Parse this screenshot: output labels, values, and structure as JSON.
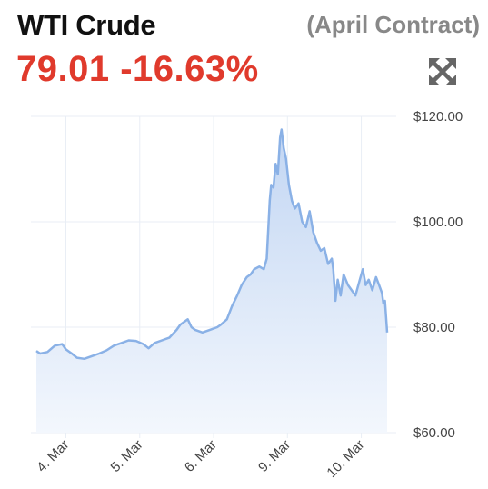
{
  "header": {
    "title": "WTI Crude",
    "subtitle": "(April Contract)",
    "price": "79.01",
    "change": "-16.63%",
    "expand_icon": "expand-arrows-icon"
  },
  "colors": {
    "title": "#111111",
    "subtitle": "#888888",
    "price": "#e03a2c",
    "line": "#8ab1e6",
    "fill_top": "#c2d6f3",
    "fill_bottom": "#f3f7fd",
    "grid": "#e9eef5",
    "icon": "#666666"
  },
  "chart_data": {
    "type": "area",
    "title": "WTI Crude",
    "subtitle": "(April Contract)",
    "xlabel": "",
    "ylabel": "",
    "ylim": [
      60,
      120
    ],
    "y_ticks": [
      "$60.00",
      "$80.00",
      "$100.00",
      "$120.00"
    ],
    "y_tick_values": [
      60,
      80,
      100,
      120
    ],
    "y_axis_position": "right",
    "grid": true,
    "x_ticks": [
      "4. Mar",
      "5. Mar",
      "6. Mar",
      "9. Mar",
      "10. Mar"
    ],
    "x_tick_positions": [
      0.5,
      1.5,
      2.5,
      3.5,
      4.5
    ],
    "x_range": [
      0.1,
      4.85
    ],
    "series": [
      {
        "values": [
          [
            0.1,
            75.5
          ],
          [
            0.15,
            75.0
          ],
          [
            0.25,
            75.3
          ],
          [
            0.35,
            76.5
          ],
          [
            0.45,
            76.8
          ],
          [
            0.5,
            75.8
          ],
          [
            0.58,
            75.0
          ],
          [
            0.65,
            74.2
          ],
          [
            0.75,
            74.0
          ],
          [
            0.85,
            74.5
          ],
          [
            0.95,
            75.0
          ],
          [
            1.05,
            75.6
          ],
          [
            1.15,
            76.5
          ],
          [
            1.25,
            77.0
          ],
          [
            1.35,
            77.5
          ],
          [
            1.45,
            77.4
          ],
          [
            1.55,
            76.8
          ],
          [
            1.62,
            76.0
          ],
          [
            1.7,
            77.0
          ],
          [
            1.8,
            77.5
          ],
          [
            1.9,
            78.0
          ],
          [
            2.0,
            79.5
          ],
          [
            2.05,
            80.5
          ],
          [
            2.1,
            81.0
          ],
          [
            2.15,
            81.5
          ],
          [
            2.2,
            80.0
          ],
          [
            2.25,
            79.5
          ],
          [
            2.35,
            79.0
          ],
          [
            2.45,
            79.5
          ],
          [
            2.55,
            80.0
          ],
          [
            2.6,
            80.5
          ],
          [
            2.68,
            81.5
          ],
          [
            2.75,
            84.0
          ],
          [
            2.82,
            86.0
          ],
          [
            2.88,
            88.0
          ],
          [
            2.95,
            89.5
          ],
          [
            3.0,
            90.0
          ],
          [
            3.05,
            91.0
          ],
          [
            3.12,
            91.5
          ],
          [
            3.18,
            91.0
          ],
          [
            3.22,
            93.0
          ],
          [
            3.26,
            104.0
          ],
          [
            3.28,
            107.0
          ],
          [
            3.31,
            106.5
          ],
          [
            3.34,
            111.0
          ],
          [
            3.37,
            109.0
          ],
          [
            3.4,
            116.0
          ],
          [
            3.42,
            117.5
          ],
          [
            3.45,
            114.0
          ],
          [
            3.48,
            112.0
          ],
          [
            3.52,
            107.0
          ],
          [
            3.56,
            104.0
          ],
          [
            3.6,
            102.5
          ],
          [
            3.65,
            103.5
          ],
          [
            3.7,
            100.0
          ],
          [
            3.75,
            99.0
          ],
          [
            3.8,
            102.0
          ],
          [
            3.85,
            98.0
          ],
          [
            3.9,
            96.0
          ],
          [
            3.95,
            94.5
          ],
          [
            4.0,
            95.0
          ],
          [
            4.05,
            92.0
          ],
          [
            4.1,
            93.0
          ],
          [
            4.12,
            91.0
          ],
          [
            4.15,
            85.0
          ],
          [
            4.18,
            89.0
          ],
          [
            4.22,
            86.0
          ],
          [
            4.26,
            90.0
          ],
          [
            4.32,
            88.0
          ],
          [
            4.37,
            87.0
          ],
          [
            4.42,
            86.0
          ],
          [
            4.48,
            89.0
          ],
          [
            4.52,
            91.0
          ],
          [
            4.56,
            88.0
          ],
          [
            4.6,
            89.0
          ],
          [
            4.65,
            87.0
          ],
          [
            4.7,
            89.5
          ],
          [
            4.74,
            88.0
          ],
          [
            4.78,
            86.5
          ],
          [
            4.8,
            84.5
          ],
          [
            4.82,
            85.0
          ],
          [
            4.85,
            79.0
          ]
        ]
      }
    ]
  }
}
